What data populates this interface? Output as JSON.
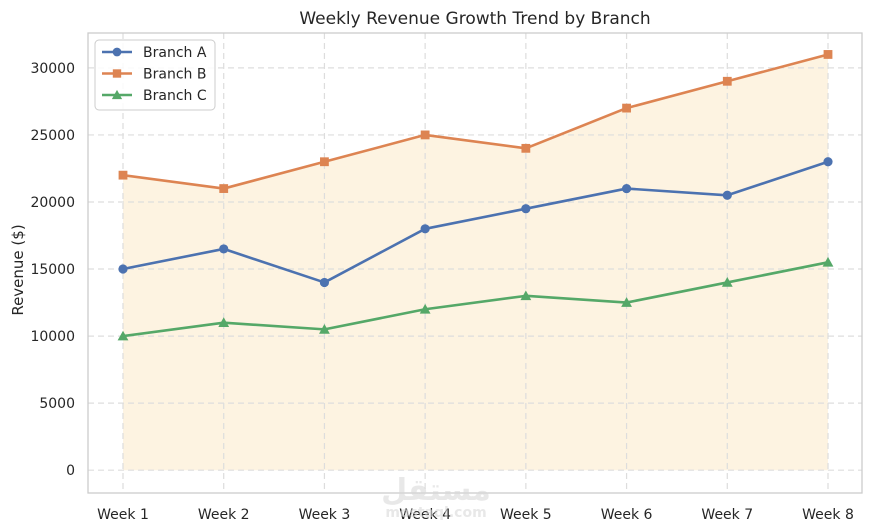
{
  "chart_data": {
    "type": "line",
    "title": "Weekly Revenue Growth Trend by Branch",
    "xlabel": "",
    "ylabel": "Revenue ($)",
    "categories": [
      "Week 1",
      "Week 2",
      "Week 3",
      "Week 4",
      "Week 5",
      "Week 6",
      "Week 7",
      "Week 8"
    ],
    "ylim": [
      -1700,
      32600
    ],
    "yticks": [
      0,
      5000,
      10000,
      15000,
      20000,
      25000,
      30000
    ],
    "grid": true,
    "legend_position": "top-left",
    "fill_between": {
      "from": "zero",
      "to": "Branch B",
      "color": "#fdf3e1"
    },
    "series": [
      {
        "name": "Branch A",
        "color": "#4c72b0",
        "marker": "circle",
        "values": [
          15000,
          16500,
          14000,
          18000,
          19500,
          21000,
          20500,
          23000
        ]
      },
      {
        "name": "Branch B",
        "color": "#dd8452",
        "marker": "square",
        "values": [
          22000,
          21000,
          23000,
          25000,
          24000,
          27000,
          29000,
          31000
        ]
      },
      {
        "name": "Branch C",
        "color": "#55a868",
        "marker": "triangle",
        "values": [
          10000,
          11000,
          10500,
          12000,
          13000,
          12500,
          14000,
          15500
        ]
      }
    ]
  },
  "watermark": {
    "main": "مستقل",
    "sub": "mostaql.com"
  }
}
